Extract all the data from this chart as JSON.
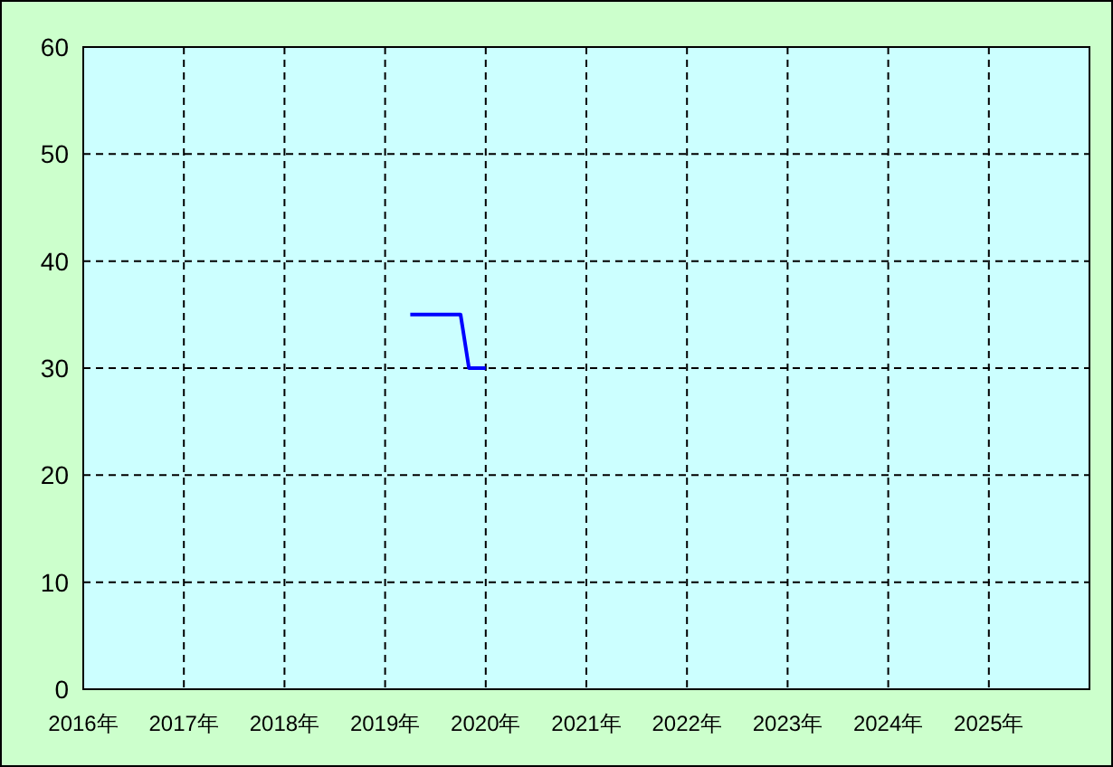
{
  "chart_data": {
    "type": "line",
    "x": [
      "2019-04",
      "2019-10",
      "2019-11",
      "2020-01"
    ],
    "series": [
      {
        "color": "#0000ff",
        "values": [
          35,
          35,
          30,
          30
        ]
      }
    ],
    "xlim": [
      "2016-01",
      "2026-01"
    ],
    "xticks": [
      {
        "value": "2016-01",
        "label": "2016年"
      },
      {
        "value": "2017-01",
        "label": "2017年"
      },
      {
        "value": "2018-01",
        "label": "2018年"
      },
      {
        "value": "2019-01",
        "label": "2019年"
      },
      {
        "value": "2020-01",
        "label": "2020年"
      },
      {
        "value": "2021-01",
        "label": "2021年"
      },
      {
        "value": "2022-01",
        "label": "2022年"
      },
      {
        "value": "2023-01",
        "label": "2023年"
      },
      {
        "value": "2024-01",
        "label": "2024年"
      },
      {
        "value": "2025-01",
        "label": "2025年"
      }
    ],
    "ylim": [
      0,
      60
    ],
    "yticks": [
      0,
      10,
      20,
      30,
      40,
      50,
      60
    ],
    "grid": true,
    "marker": "none",
    "line_style": "solid"
  }
}
